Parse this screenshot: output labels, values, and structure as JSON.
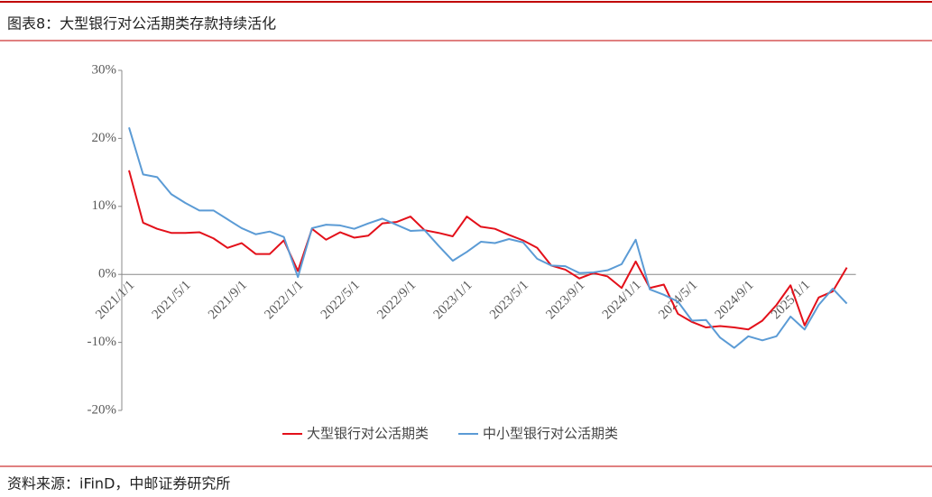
{
  "chart_data": {
    "type": "line",
    "title": "图表8：大型银行对公活期类存款持续活化",
    "source": "资料来源：iFinD，中邮证券研究所",
    "categories": [
      "2021/1/1",
      null,
      null,
      null,
      "2021/5/1",
      null,
      null,
      null,
      "2021/9/1",
      null,
      null,
      null,
      "2022/1/1",
      null,
      null,
      null,
      "2022/5/1",
      null,
      null,
      null,
      "2022/9/1",
      null,
      null,
      null,
      "2023/1/1",
      null,
      null,
      null,
      "2023/5/1",
      null,
      null,
      null,
      "2023/9/1",
      null,
      null,
      null,
      "2024/1/1",
      null,
      null,
      null,
      "2024/5/1",
      null,
      null,
      null,
      "2024/9/1",
      null,
      null,
      null,
      "2025/1/1",
      null,
      null,
      null
    ],
    "series": [
      {
        "name": "大型银行对公活期类",
        "color": "#e3101a",
        "values": [
          15.3,
          7.6,
          6.7,
          6.1,
          6.1,
          6.2,
          5.3,
          3.9,
          4.6,
          3.0,
          3.0,
          5.0,
          0.5,
          6.7,
          5.1,
          6.2,
          5.4,
          5.7,
          7.5,
          7.7,
          8.5,
          6.5,
          6.1,
          5.6,
          8.5,
          7.0,
          6.7,
          5.8,
          5.0,
          3.9,
          1.3,
          0.7,
          -0.6,
          0.2,
          -0.3,
          -2.0,
          1.9,
          -2.0,
          -1.5,
          -5.8,
          -7.0,
          -7.8,
          -7.6,
          -7.8,
          -8.1,
          -6.8,
          -4.5,
          -1.6,
          -7.5,
          -3.4,
          -2.5,
          1.0
        ]
      },
      {
        "name": "中小型银行对公活期类",
        "color": "#5b9bd5",
        "values": [
          21.6,
          14.7,
          14.3,
          11.8,
          10.5,
          9.4,
          9.4,
          8.1,
          6.8,
          5.9,
          6.3,
          5.5,
          -0.4,
          6.8,
          7.3,
          7.2,
          6.7,
          7.5,
          8.2,
          7.3,
          6.4,
          6.5,
          4.2,
          2.0,
          3.3,
          4.8,
          4.6,
          5.2,
          4.7,
          2.3,
          1.3,
          1.2,
          0.2,
          0.3,
          0.6,
          1.5,
          5.1,
          -2.2,
          -3.0,
          -4.0,
          -6.8,
          -6.7,
          -9.3,
          -10.8,
          -9.1,
          -9.7,
          -9.1,
          -6.2,
          -8.1,
          -4.5,
          -2.1,
          -4.3
        ]
      }
    ],
    "ylim": [
      -20,
      30
    ],
    "yticks": [
      {
        "value": -20,
        "label": "-20%"
      },
      {
        "value": -10,
        "label": "-10%"
      },
      {
        "value": 0,
        "label": "0%"
      },
      {
        "value": 10,
        "label": "10%"
      },
      {
        "value": 20,
        "label": "20%"
      },
      {
        "value": 30,
        "label": "30%"
      }
    ],
    "legend": "bottom"
  }
}
